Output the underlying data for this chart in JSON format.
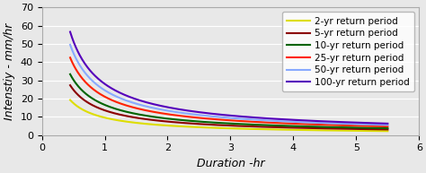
{
  "title": "",
  "xlabel": "Duration -hr",
  "ylabel": "Intenstiy - mm/hr",
  "xlim": [
    0,
    6
  ],
  "ylim": [
    0,
    70
  ],
  "xticks": [
    0,
    1,
    2,
    3,
    4,
    5,
    6
  ],
  "yticks": [
    0,
    10,
    20,
    30,
    40,
    50,
    60,
    70
  ],
  "series": [
    {
      "label": "2-yr return period",
      "color": "#DDDD00",
      "a": 9.5,
      "b": 0.88
    },
    {
      "label": "5-yr return period",
      "color": "#8B0000",
      "a": 13.5,
      "b": 0.88
    },
    {
      "label": "10-yr return period",
      "color": "#006400",
      "a": 16.5,
      "b": 0.88
    },
    {
      "label": "25-yr return period",
      "color": "#FF2200",
      "a": 21.0,
      "b": 0.88
    },
    {
      "label": "50-yr return period",
      "color": "#88AAFF",
      "a": 24.5,
      "b": 0.88
    },
    {
      "label": "100-yr return period",
      "color": "#5500BB",
      "a": 28.0,
      "b": 0.88
    }
  ],
  "background_color": "#e8e8e8",
  "plot_bg_color": "#e8e8e8",
  "legend_fontsize": 7.5,
  "axis_label_fontsize": 9,
  "tick_fontsize": 8,
  "linewidth": 1.5
}
